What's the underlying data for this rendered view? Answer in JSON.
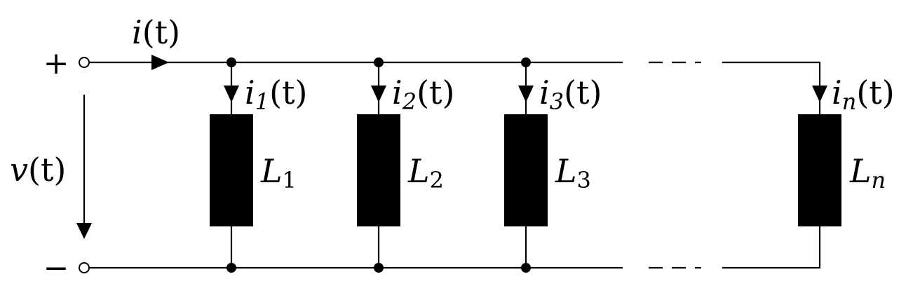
{
  "terminals": {
    "plus": "+",
    "minus": "−"
  },
  "source": {
    "current": {
      "var": "i",
      "arg": "(t)"
    },
    "voltage": {
      "var": "v",
      "arg": "(t)"
    }
  },
  "branches": [
    {
      "inductor": {
        "var": "L",
        "sub": "1"
      },
      "current": {
        "var": "i",
        "sub": "1",
        "arg": "(t)"
      }
    },
    {
      "inductor": {
        "var": "L",
        "sub": "2"
      },
      "current": {
        "var": "i",
        "sub": "2",
        "arg": "(t)"
      }
    },
    {
      "inductor": {
        "var": "L",
        "sub": "3"
      },
      "current": {
        "var": "i",
        "sub": "3",
        "arg": "(t)"
      }
    },
    {
      "inductor": {
        "var": "L",
        "sub": "n"
      },
      "current": {
        "var": "i",
        "sub": "n",
        "arg": "(t)"
      }
    }
  ]
}
